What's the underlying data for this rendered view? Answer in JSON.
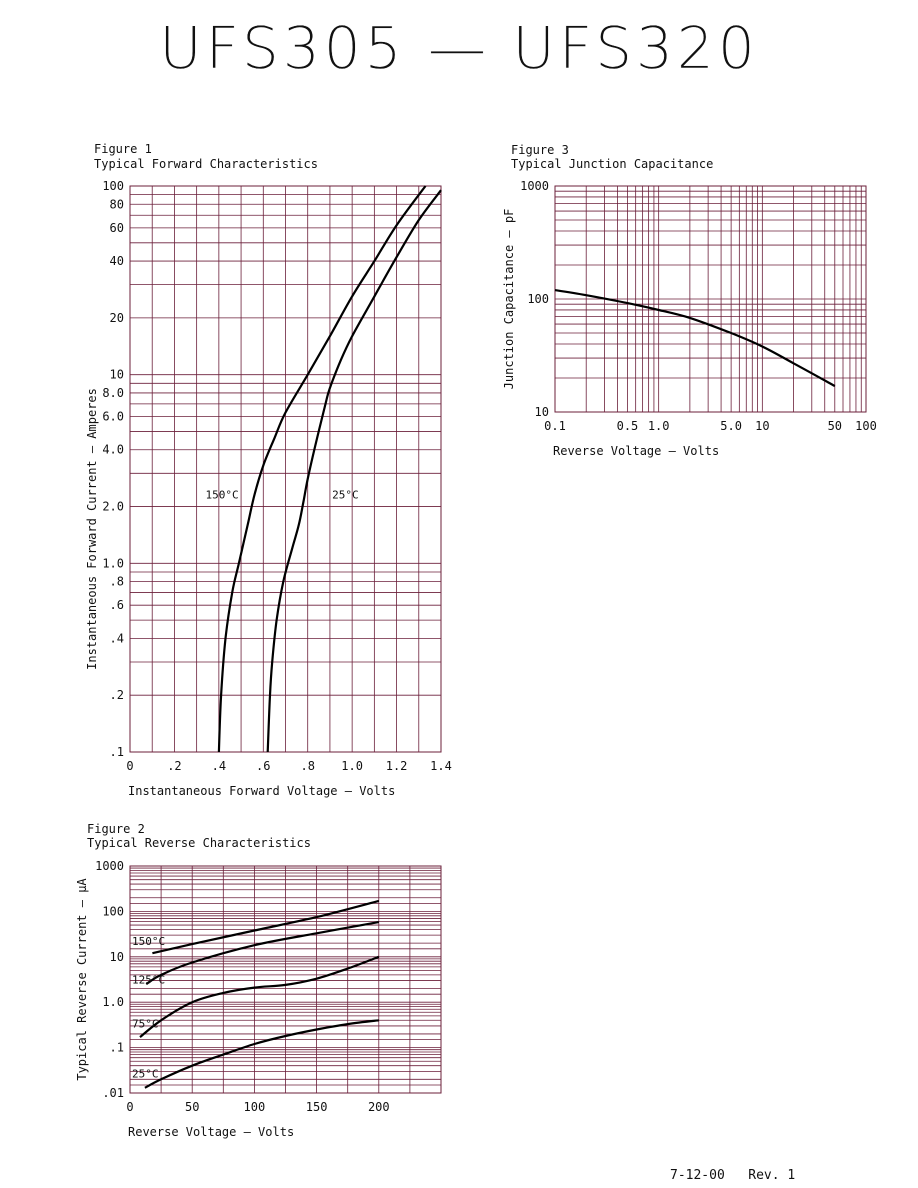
{
  "header": {
    "title": "UFS305 — UFS320"
  },
  "footer": {
    "revision": "7-12-00   Rev. 1"
  },
  "chart_data": [
    {
      "id": "figure-1",
      "type": "line",
      "figure_label": "Figure 1",
      "title": "Typical Forward Characteristics",
      "xlabel": "Instantaneous Forward Voltage — Volts",
      "ylabel": "Instantaneous Forward Current — Amperes",
      "xlim": [
        0,
        1.4
      ],
      "ylim": [
        0.1,
        100
      ],
      "yscale": "log",
      "grid": true,
      "x_ticks": [
        {
          "v": 0,
          "label": "0"
        },
        {
          "v": 0.2,
          "label": ".2"
        },
        {
          "v": 0.4,
          "label": ".4"
        },
        {
          "v": 0.6,
          "label": ".6"
        },
        {
          "v": 0.8,
          "label": ".8"
        },
        {
          "v": 1.0,
          "label": "1.0"
        },
        {
          "v": 1.2,
          "label": "1.2"
        },
        {
          "v": 1.4,
          "label": "1.4"
        }
      ],
      "y_ticks": [
        {
          "v": 0.1,
          "label": ".1"
        },
        {
          "v": 0.2,
          "label": ".2"
        },
        {
          "v": 0.4,
          "label": ".4"
        },
        {
          "v": 0.6,
          "label": ".6"
        },
        {
          "v": 0.8,
          "label": ".8"
        },
        {
          "v": 1.0,
          "label": "1.0"
        },
        {
          "v": 2.0,
          "label": "2.0"
        },
        {
          "v": 4.0,
          "label": "4.0"
        },
        {
          "v": 6.0,
          "label": "6.0"
        },
        {
          "v": 8.0,
          "label": "8.0"
        },
        {
          "v": 10,
          "label": "10"
        },
        {
          "v": 20,
          "label": "20"
        },
        {
          "v": 40,
          "label": "40"
        },
        {
          "v": 60,
          "label": "60"
        },
        {
          "v": 80,
          "label": "80"
        },
        {
          "v": 100,
          "label": "100"
        }
      ],
      "series": [
        {
          "name": "150°C",
          "label_at": [
            0.34,
            2.2
          ],
          "points": [
            [
              0.4,
              0.1
            ],
            [
              0.41,
              0.2
            ],
            [
              0.43,
              0.4
            ],
            [
              0.46,
              0.7
            ],
            [
              0.49,
              1.0
            ],
            [
              0.53,
              1.6
            ],
            [
              0.56,
              2.3
            ],
            [
              0.6,
              3.3
            ],
            [
              0.65,
              4.6
            ],
            [
              0.7,
              6.3
            ],
            [
              0.8,
              10
            ],
            [
              0.9,
              16
            ],
            [
              1.0,
              26
            ],
            [
              1.1,
              40
            ],
            [
              1.2,
              62
            ],
            [
              1.33,
              100
            ]
          ]
        },
        {
          "name": "25°C",
          "label_at": [
            0.91,
            2.2
          ],
          "points": [
            [
              0.62,
              0.1
            ],
            [
              0.63,
              0.2
            ],
            [
              0.64,
              0.3
            ],
            [
              0.66,
              0.5
            ],
            [
              0.69,
              0.8
            ],
            [
              0.73,
              1.2
            ],
            [
              0.76,
              1.6
            ],
            [
              0.78,
              2.1
            ],
            [
              0.8,
              2.8
            ],
            [
              0.84,
              4.5
            ],
            [
              0.88,
              7
            ],
            [
              0.9,
              8.5
            ],
            [
              0.95,
              12
            ],
            [
              1.0,
              16
            ],
            [
              1.1,
              26
            ],
            [
              1.2,
              42
            ],
            [
              1.3,
              66
            ],
            [
              1.4,
              95
            ]
          ]
        }
      ]
    },
    {
      "id": "figure-2",
      "type": "line",
      "figure_label": "Figure 2",
      "title": "Typical Reverse Characteristics",
      "xlabel": "Reverse Voltage — Volts",
      "ylabel": "Typical Reverse Current — µA",
      "xlim": [
        0,
        250
      ],
      "ylim": [
        0.01,
        1000
      ],
      "yscale": "log",
      "grid": true,
      "x_ticks": [
        {
          "v": 0,
          "label": "0"
        },
        {
          "v": 50,
          "label": "50"
        },
        {
          "v": 100,
          "label": "100"
        },
        {
          "v": 150,
          "label": "150"
        },
        {
          "v": 200,
          "label": "200"
        }
      ],
      "y_ticks": [
        {
          "v": 0.01,
          "label": ".01"
        },
        {
          "v": 0.1,
          "label": ".1"
        },
        {
          "v": 1,
          "label": "1.0"
        },
        {
          "v": 10,
          "label": "10"
        },
        {
          "v": 100,
          "label": "100"
        },
        {
          "v": 1000,
          "label": "1000"
        }
      ],
      "series": [
        {
          "name": "150°C",
          "label_at": [
            0,
            18
          ],
          "points": [
            [
              18,
              12
            ],
            [
              50,
              19
            ],
            [
              100,
              38
            ],
            [
              150,
              75
            ],
            [
              200,
              170
            ]
          ]
        },
        {
          "name": "125°C",
          "label_at": [
            0,
            2.6
          ],
          "points": [
            [
              13,
              2.5
            ],
            [
              25,
              4
            ],
            [
              50,
              7.5
            ],
            [
              100,
              18
            ],
            [
              150,
              33
            ],
            [
              200,
              58
            ]
          ]
        },
        {
          "name": "75°C",
          "label_at": [
            0,
            0.28
          ],
          "points": [
            [
              8,
              0.17
            ],
            [
              25,
              0.4
            ],
            [
              50,
              1.0
            ],
            [
              75,
              1.6
            ],
            [
              100,
              2.1
            ],
            [
              125,
              2.4
            ],
            [
              150,
              3.3
            ],
            [
              175,
              5.5
            ],
            [
              200,
              10
            ]
          ]
        },
        {
          "name": "25°C",
          "label_at": [
            0,
            0.022
          ],
          "points": [
            [
              12,
              0.013
            ],
            [
              25,
              0.02
            ],
            [
              50,
              0.04
            ],
            [
              75,
              0.07
            ],
            [
              100,
              0.12
            ],
            [
              125,
              0.18
            ],
            [
              150,
              0.25
            ],
            [
              175,
              0.33
            ],
            [
              200,
              0.4
            ]
          ]
        }
      ]
    },
    {
      "id": "figure-3",
      "type": "line",
      "figure_label": "Figure 3",
      "title": "Typical Junction Capacitance",
      "xlabel": "Reverse Voltage — Volts",
      "ylabel": "Junction Capacitance — pF",
      "xlim": [
        0.1,
        100
      ],
      "ylim": [
        10,
        1000
      ],
      "xscale": "log",
      "yscale": "log",
      "grid": true,
      "x_ticks": [
        {
          "v": 0.1,
          "label": "0.1"
        },
        {
          "v": 0.5,
          "label": "0.5"
        },
        {
          "v": 1,
          "label": "1.0"
        },
        {
          "v": 5,
          "label": "5.0"
        },
        {
          "v": 10,
          "label": "10"
        },
        {
          "v": 50,
          "label": "50"
        },
        {
          "v": 100,
          "label": "100"
        }
      ],
      "y_ticks": [
        {
          "v": 10,
          "label": "10"
        },
        {
          "v": 100,
          "label": "100"
        },
        {
          "v": 1000,
          "label": "1000"
        }
      ],
      "series": [
        {
          "points": [
            [
              0.1,
              120
            ],
            [
              0.2,
              108
            ],
            [
              0.5,
              92
            ],
            [
              1,
              80
            ],
            [
              2,
              68
            ],
            [
              5,
              50
            ],
            [
              10,
              38
            ],
            [
              20,
              27
            ],
            [
              50,
              17
            ]
          ]
        }
      ]
    }
  ]
}
